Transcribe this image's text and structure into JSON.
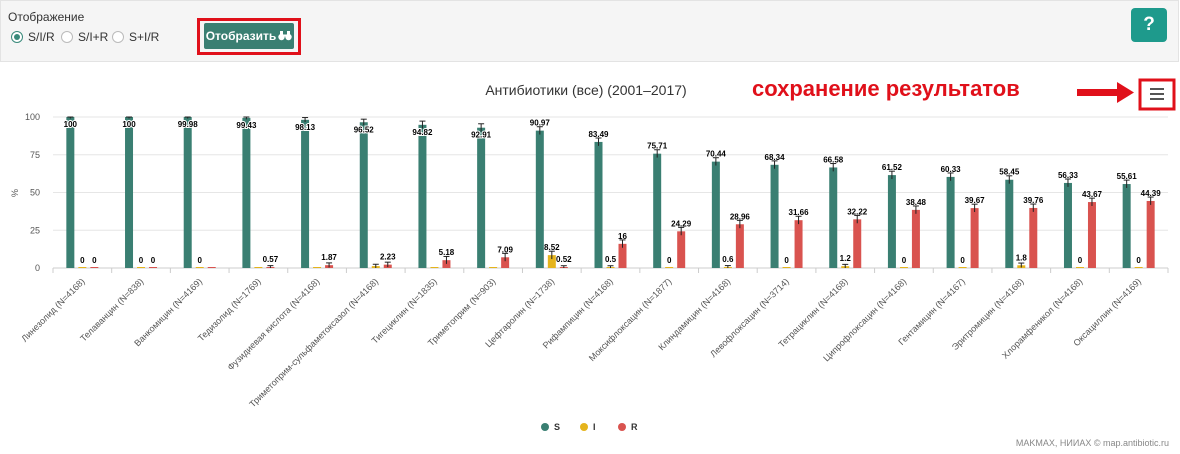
{
  "display": {
    "title": "Отображение",
    "options": [
      {
        "label": "S/I/R",
        "selected": true
      },
      {
        "label": "S/I+R",
        "selected": false
      },
      {
        "label": "S+I/R",
        "selected": false
      }
    ],
    "show_button": "Отобразить",
    "help_button": "?"
  },
  "annotation": "сохранение результатов",
  "credits": "MAKMAX, НИИАХ © map.antibiotic.ru",
  "chart_data": {
    "type": "bar",
    "title": "Антибиотики (все) (2001–2017)",
    "ylabel": "%",
    "ylim": [
      0,
      100
    ],
    "yticks": [
      0,
      25,
      50,
      75,
      100
    ],
    "grid": true,
    "legend_position": "bottom",
    "colors": {
      "S": "#3a7f72",
      "I": "#e5b41c",
      "R": "#d9534f"
    },
    "categories": [
      "Линезолид (N=4168)",
      "Телаванцин (N=838)",
      "Ванкомицин (N=4169)",
      "Тедизолид (N=1769)",
      "Фузидиевая кислота (N=4168)",
      "Триметоприм-сульфаметоксазол (N=4168)",
      "Тигециклин (N=1835)",
      "Триметоприм (N=903)",
      "Цефтаролин (N=1738)",
      "Рифампицин (N=4168)",
      "Моксифлоксацин (N=1877)",
      "Клиндамицин (N=4168)",
      "Левофлоксацин (N=3714)",
      "Тетрациклин (N=4168)",
      "Ципрофлоксацин (N=4168)",
      "Гентамицин (N=4167)",
      "Эритромицин (N=4168)",
      "Хлорамфеникол (N=4168)",
      "Оксациллин (N=4169)"
    ],
    "series": [
      {
        "name": "S",
        "values": [
          100,
          100,
          99.98,
          99.43,
          98.13,
          96.52,
          94.82,
          92.91,
          90.97,
          83.49,
          75.71,
          70.44,
          68.34,
          66.58,
          61.52,
          60.33,
          58.45,
          56.33,
          55.61
        ]
      },
      {
        "name": "I",
        "values": [
          0,
          0,
          0,
          0,
          0,
          1.25,
          0,
          0,
          8.52,
          0.5,
          0,
          0.6,
          0,
          1.2,
          0,
          0,
          1.8,
          0,
          0
        ]
      },
      {
        "name": "R",
        "values": [
          0,
          0,
          0.02,
          0.57,
          1.87,
          2.23,
          5.18,
          7.09,
          0.52,
          16,
          24.29,
          28.96,
          31.66,
          32.22,
          38.48,
          39.67,
          39.76,
          43.67,
          44.39
        ]
      }
    ],
    "data_labels": [
      {
        "category": 0,
        "series": "S",
        "text": "100"
      },
      {
        "category": 0,
        "series": "I",
        "text": "0"
      },
      {
        "category": 0,
        "series": "R",
        "text": "0"
      },
      {
        "category": 1,
        "series": "S",
        "text": "100"
      },
      {
        "category": 1,
        "series": "I",
        "text": "0"
      },
      {
        "category": 1,
        "series": "R",
        "text": "0"
      },
      {
        "category": 2,
        "series": "S",
        "text": "99.98"
      },
      {
        "category": 2,
        "series": "I",
        "text": "0"
      },
      {
        "category": 3,
        "series": "S",
        "text": "99.43"
      },
      {
        "category": 3,
        "series": "R",
        "text": "0.57"
      },
      {
        "category": 4,
        "series": "S",
        "text": "98.13"
      },
      {
        "category": 4,
        "series": "R",
        "text": "1.87"
      },
      {
        "category": 5,
        "series": "S",
        "text": "96.52"
      },
      {
        "category": 5,
        "series": "R",
        "text": "2.23"
      },
      {
        "category": 6,
        "series": "S",
        "text": "94.82"
      },
      {
        "category": 6,
        "series": "R",
        "text": "5.18"
      },
      {
        "category": 7,
        "series": "S",
        "text": "92.91"
      },
      {
        "category": 7,
        "series": "R",
        "text": "7.09"
      },
      {
        "category": 8,
        "series": "S",
        "text": "90.97"
      },
      {
        "category": 8,
        "series": "I",
        "text": "8.52"
      },
      {
        "category": 8,
        "series": "R",
        "text": "0.52"
      },
      {
        "category": 9,
        "series": "S",
        "text": "83.49"
      },
      {
        "category": 9,
        "series": "I",
        "text": "0.5"
      },
      {
        "category": 9,
        "series": "R",
        "text": "16"
      },
      {
        "category": 10,
        "series": "S",
        "text": "75.71"
      },
      {
        "category": 10,
        "series": "I",
        "text": "0"
      },
      {
        "category": 10,
        "series": "R",
        "text": "24.29"
      },
      {
        "category": 11,
        "series": "S",
        "text": "70.44"
      },
      {
        "category": 11,
        "series": "I",
        "text": "0.6"
      },
      {
        "category": 11,
        "series": "R",
        "text": "28.96"
      },
      {
        "category": 12,
        "series": "S",
        "text": "68.34"
      },
      {
        "category": 12,
        "series": "I",
        "text": "0"
      },
      {
        "category": 12,
        "series": "R",
        "text": "31.66"
      },
      {
        "category": 13,
        "series": "S",
        "text": "66.58"
      },
      {
        "category": 13,
        "series": "I",
        "text": "1.2"
      },
      {
        "category": 13,
        "series": "R",
        "text": "32.22"
      },
      {
        "category": 14,
        "series": "S",
        "text": "61.52"
      },
      {
        "category": 14,
        "series": "I",
        "text": "0"
      },
      {
        "category": 14,
        "series": "R",
        "text": "38.48"
      },
      {
        "category": 15,
        "series": "S",
        "text": "60.33"
      },
      {
        "category": 15,
        "series": "I",
        "text": "0"
      },
      {
        "category": 15,
        "series": "R",
        "text": "39.67"
      },
      {
        "category": 16,
        "series": "S",
        "text": "58.45"
      },
      {
        "category": 16,
        "series": "I",
        "text": "1.8"
      },
      {
        "category": 16,
        "series": "R",
        "text": "39.76"
      },
      {
        "category": 17,
        "series": "S",
        "text": "56.33"
      },
      {
        "category": 17,
        "series": "I",
        "text": "0"
      },
      {
        "category": 17,
        "series": "R",
        "text": "43.67"
      },
      {
        "category": 18,
        "series": "S",
        "text": "55.61"
      },
      {
        "category": 18,
        "series": "I",
        "text": "0"
      },
      {
        "category": 18,
        "series": "R",
        "text": "44.39"
      }
    ]
  }
}
